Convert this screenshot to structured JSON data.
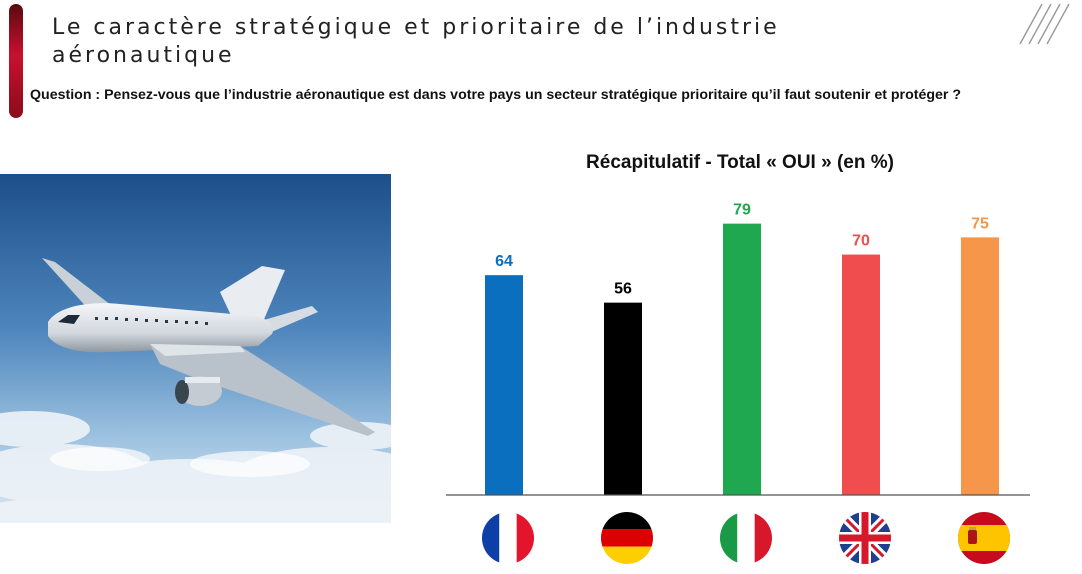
{
  "slide": {
    "title": "Le caractère stratégique et prioritaire de l’industrie aéronautique",
    "question": "Question : Pensez-vous que l’industrie aéronautique est dans votre pays un secteur stratégique prioritaire qu’il faut soutenir et protéger ?"
  },
  "colors": {
    "accent": "#c8102e"
  },
  "chart_data": {
    "type": "bar",
    "title": "Récapitulatif - Total « OUI » (en %)",
    "categories": [
      "France",
      "Germany",
      "Italy",
      "United Kingdom",
      "Spain"
    ],
    "values": [
      64,
      56,
      79,
      70,
      75
    ],
    "colors": [
      "#0a6fbf",
      "#000000",
      "#1fa84f",
      "#f04e4e",
      "#f5964a"
    ],
    "label_colors": [
      "#0a6fbf",
      "#000000",
      "#1fa84f",
      "#f04e4e",
      "#f5964a"
    ],
    "category_icons": [
      "flag-france-icon",
      "flag-germany-icon",
      "flag-italy-icon",
      "flag-uk-icon",
      "flag-spain-icon"
    ],
    "ylim": [
      0,
      100
    ],
    "grid": false,
    "legend": "none"
  }
}
